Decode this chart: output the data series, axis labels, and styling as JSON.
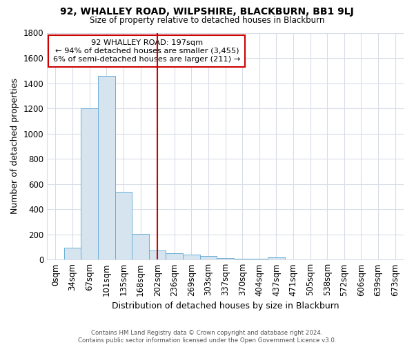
{
  "title": "92, WHALLEY ROAD, WILPSHIRE, BLACKBURN, BB1 9LJ",
  "subtitle": "Size of property relative to detached houses in Blackburn",
  "xlabel": "Distribution of detached houses by size in Blackburn",
  "ylabel": "Number of detached properties",
  "bar_color": "#d6e4f0",
  "bar_edge_color": "#6aaed6",
  "categories": [
    "0sqm",
    "34sqm",
    "67sqm",
    "101sqm",
    "135sqm",
    "168sqm",
    "202sqm",
    "236sqm",
    "269sqm",
    "303sqm",
    "337sqm",
    "370sqm",
    "404sqm",
    "437sqm",
    "471sqm",
    "505sqm",
    "538sqm",
    "572sqm",
    "606sqm",
    "639sqm",
    "673sqm"
  ],
  "values": [
    0,
    95,
    1200,
    1460,
    535,
    205,
    70,
    48,
    40,
    28,
    14,
    8,
    5,
    18,
    0,
    0,
    0,
    0,
    0,
    0,
    0
  ],
  "ylim": [
    0,
    1800
  ],
  "yticks": [
    0,
    200,
    400,
    600,
    800,
    1000,
    1200,
    1400,
    1600,
    1800
  ],
  "vline_index": 6,
  "vline_color": "#cc0000",
  "annotation_title": "92 WHALLEY ROAD: 197sqm",
  "annotation_line1": "← 94% of detached houses are smaller (3,455)",
  "annotation_line2": "6% of semi-detached houses are larger (211) →",
  "footer1": "Contains HM Land Registry data © Crown copyright and database right 2024.",
  "footer2": "Contains public sector information licensed under the Open Government Licence v3.0.",
  "background_color": "#ffffff",
  "grid_color": "#d8dce8"
}
